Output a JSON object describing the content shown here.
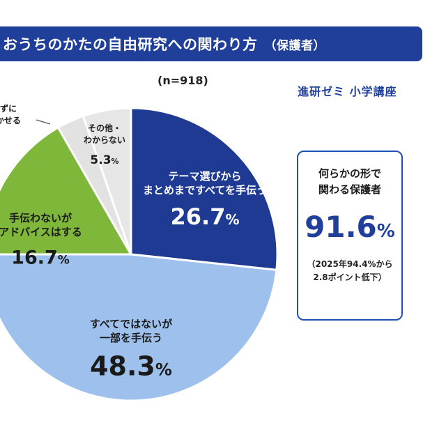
{
  "header": {
    "title": "おうちのかたの自由研究への関わり方",
    "subtitle": "（保護者）"
  },
  "sample_label": "(n=918)",
  "brand": "進研ゼミ 小学講座",
  "callout": {
    "line1": "何らかの形で",
    "line2": "関わる保護者",
    "value": "91.6",
    "unit": "%",
    "note1": "（2025年94.4%から",
    "note2": "2.8ポイント低下）"
  },
  "colors": {
    "title_bg": "#1f3f9a",
    "navy": "#1e3a93",
    "light_blue": "#9ec0ec",
    "green": "#7fb73a",
    "light_gray": "#e2e2e2",
    "mid_gray": "#c9c9c9"
  },
  "chart_data": {
    "type": "pie",
    "slices": [
      {
        "lines": [
          "テーマ選びから",
          "まとめまですべてを手伝う"
        ],
        "value": 26.7,
        "label": "26.7",
        "color": "#1e3a93",
        "text_color": "#ffffff"
      },
      {
        "lines": [
          "すべてではないが",
          "一部を手伝う"
        ],
        "value": 48.3,
        "label": "48.3",
        "color": "#9ec0ec",
        "text_color": "#1a1a1a"
      },
      {
        "lines": [
          "手伝わないが",
          "アドバイスはする"
        ],
        "value": 16.7,
        "label": "16.7",
        "color": "#7fb73a",
        "text_color": "#1a1a1a"
      },
      {
        "lines": [
          "ずに",
          "かせる"
        ],
        "value": 3.0,
        "label": "",
        "color": "#e2e2e2",
        "text_color": "#1a1a1a",
        "outside": true
      },
      {
        "lines": [
          "その他・",
          "わからない"
        ],
        "value": 5.3,
        "label": "5.3",
        "color": "#e6e6e6",
        "text_color": "#1a1a1a"
      }
    ],
    "unit": "%"
  }
}
